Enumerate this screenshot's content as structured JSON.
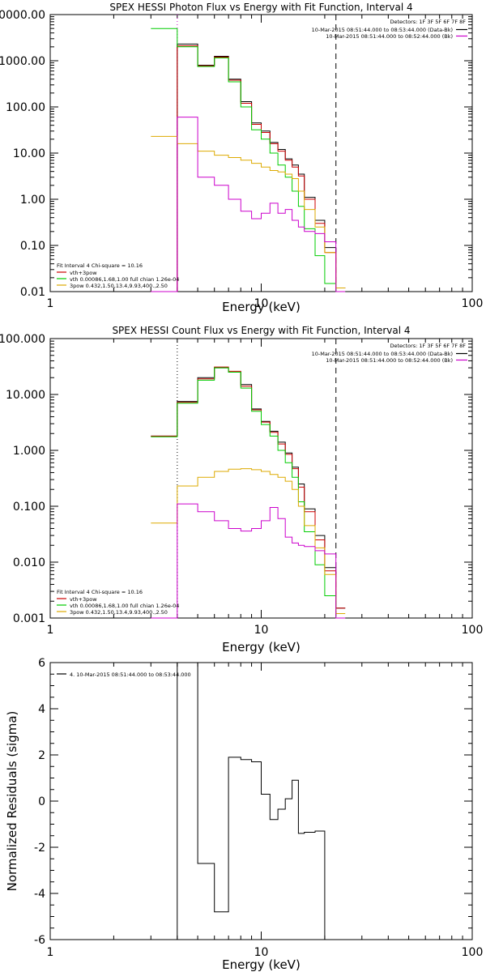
{
  "chart_data": [
    {
      "type": "line",
      "title": "SPEX HESSI Photon Flux vs Energy with Fit Function, Interval 4",
      "xlabel": "Energy (keV)",
      "ylabel": "",
      "xscale": "log",
      "yscale": "log",
      "xlim": [
        1,
        100
      ],
      "ylim": [
        0.01,
        10000
      ],
      "xticks": [
        {
          "v": 1,
          "label": "1"
        },
        {
          "v": 10,
          "label": "10"
        },
        {
          "v": 100,
          "label": "100"
        }
      ],
      "yticks": [
        {
          "v": 0.01,
          "label": "0.01"
        },
        {
          "v": 0.1,
          "label": "0.10"
        },
        {
          "v": 1,
          "label": "1.00"
        },
        {
          "v": 10,
          "label": "10.00"
        },
        {
          "v": 100,
          "label": "100.00"
        },
        {
          "v": 1000,
          "label": "1000.00"
        },
        {
          "v": 10000,
          "label": "10000.00"
        }
      ],
      "vlines": [
        {
          "x": 4.0,
          "style": "dotted",
          "color": "#cc00cc"
        },
        {
          "x": 22.6,
          "style": "dashed",
          "color": "#000000"
        }
      ],
      "legend_top": {
        "header": "Detectors: 1F 3F 5F 6F 7F 8F",
        "entries": [
          {
            "text": "10-Mar-2015 08:51:44.000 to 08:53:44.000 (Data-Bk)",
            "color": "#000000"
          },
          {
            "text": "10-Mar-2015 08:51:44.000 to 08:52:44.000 (Bk)",
            "color": "#cc00cc"
          }
        ]
      },
      "legend_bottom": {
        "header": "Fit Interval 4   Chi-square = 10.16",
        "entries": [
          {
            "text": "vth+3pow",
            "color": "#cc0000"
          },
          {
            "text": "vth 0.00086,1.68,1.00  full chian 1.26e-04",
            "color": "#00cc00"
          },
          {
            "text": "3pow 0.432,1.50,13.4,9.93,400.,2.50",
            "color": "#ddaa00"
          }
        ]
      },
      "edges": [
        3.0,
        4.0,
        5.0,
        6.0,
        7.0,
        8.0,
        9.0,
        10.0,
        11.0,
        12.0,
        13.0,
        14.0,
        15.0,
        16.0,
        18.0,
        20.0,
        22.6,
        25.0
      ],
      "series": [
        {
          "name": "Data-Bk",
          "color": "#000000",
          "values": [
            0.002,
            2300,
            800,
            1250,
            400,
            130,
            45,
            30,
            17,
            12,
            7.5,
            5.5,
            3.5,
            1.1,
            0.35,
            0.09,
            0.012
          ]
        },
        {
          "name": "vth+3pow",
          "color": "#cc0000",
          "values": [
            0.002,
            2100,
            780,
            1200,
            380,
            120,
            42,
            28,
            16,
            11,
            7,
            5,
            3.2,
            1.0,
            0.3,
            0.07,
            0.012
          ]
        },
        {
          "name": "vth",
          "color": "#00cc00",
          "values": [
            5000,
            2000,
            750,
            1150,
            350,
            100,
            32,
            20,
            10,
            5.5,
            3,
            1.5,
            0.7,
            0.23,
            0.06,
            0.015,
            0.002
          ]
        },
        {
          "name": "3pow",
          "color": "#ddaa00",
          "values": [
            23,
            16,
            11,
            9,
            8,
            7,
            6,
            5,
            4.2,
            3.9,
            3.5,
            2.8,
            1.5,
            0.6,
            0.25,
            0.07,
            0.012
          ]
        },
        {
          "name": "Bk",
          "color": "#cc00cc",
          "values": [
            0.002,
            60,
            3,
            2,
            1,
            0.55,
            0.38,
            0.5,
            0.82,
            0.5,
            0.6,
            0.35,
            0.25,
            0.2,
            0.18,
            0.12,
            0.01
          ]
        }
      ]
    },
    {
      "type": "line",
      "title": "SPEX HESSI Count Flux vs Energy with Fit Function, Interval 4",
      "xlabel": "Energy (keV)",
      "ylabel": "",
      "xscale": "log",
      "yscale": "log",
      "xlim": [
        1,
        100
      ],
      "ylim": [
        0.001,
        100
      ],
      "xticks": [
        {
          "v": 1,
          "label": "1"
        },
        {
          "v": 10,
          "label": "10"
        },
        {
          "v": 100,
          "label": "100"
        }
      ],
      "yticks": [
        {
          "v": 0.001,
          "label": "0.001"
        },
        {
          "v": 0.01,
          "label": "0.010"
        },
        {
          "v": 0.1,
          "label": "0.100"
        },
        {
          "v": 1,
          "label": "1.000"
        },
        {
          "v": 10,
          "label": "10.000"
        },
        {
          "v": 100,
          "label": "100.000"
        }
      ],
      "vlines": [
        {
          "x": 4.0,
          "style": "dotted",
          "color": "#000000"
        },
        {
          "x": 22.6,
          "style": "dashed",
          "color": "#000000"
        }
      ],
      "legend_top": {
        "header": "Detectors: 1F 3F 5F 6F 7F 8F",
        "entries": [
          {
            "text": "10-Mar-2015 08:51:44.000 to 08:53:44.000 (Data-Bk)",
            "color": "#000000"
          },
          {
            "text": "10-Mar-2015 08:51:44.000 to 08:52:44.000 (Bk)",
            "color": "#cc00cc"
          }
        ]
      },
      "legend_bottom": {
        "header": "Fit Interval 4   Chi-square = 10.16",
        "entries": [
          {
            "text": "vth+3pow",
            "color": "#cc0000"
          },
          {
            "text": "vth 0.00086,1.68,1.00  full chian 1.26e-04",
            "color": "#00cc00"
          },
          {
            "text": "3pow 0.432,1.50,13.4,9.93,400.,2.50",
            "color": "#ddaa00"
          }
        ]
      },
      "edges": [
        3.0,
        4.0,
        5.0,
        6.0,
        7.0,
        8.0,
        9.0,
        10.0,
        11.0,
        12.0,
        13.0,
        14.0,
        15.0,
        16.0,
        18.0,
        20.0,
        22.6,
        25.0
      ],
      "series": [
        {
          "name": "Data-Bk",
          "color": "#000000",
          "values": [
            1.8,
            7.5,
            20,
            30,
            25,
            15,
            5.5,
            3.3,
            2.2,
            1.4,
            0.9,
            0.5,
            0.25,
            0.09,
            0.03,
            0.008,
            0.0015
          ]
        },
        {
          "name": "vth+3pow",
          "color": "#cc0000",
          "values": [
            1.8,
            7.2,
            19,
            31,
            26,
            14,
            5.3,
            3.2,
            2.1,
            1.3,
            0.85,
            0.47,
            0.22,
            0.08,
            0.025,
            0.007,
            0.0015
          ]
        },
        {
          "name": "vth",
          "color": "#00cc00",
          "values": [
            1.75,
            7,
            18,
            30,
            25,
            13,
            5,
            2.9,
            1.8,
            1.0,
            0.6,
            0.33,
            0.12,
            0.035,
            0.009,
            0.0025,
            0.001
          ]
        },
        {
          "name": "3pow",
          "color": "#ddaa00",
          "values": [
            0.05,
            0.23,
            0.33,
            0.42,
            0.46,
            0.47,
            0.45,
            0.42,
            0.37,
            0.33,
            0.28,
            0.2,
            0.1,
            0.045,
            0.018,
            0.006,
            0.0012
          ]
        },
        {
          "name": "Bk",
          "color": "#cc00cc",
          "values": [
            0.001,
            0.11,
            0.08,
            0.055,
            0.04,
            0.036,
            0.04,
            0.055,
            0.095,
            0.06,
            0.028,
            0.022,
            0.02,
            0.019,
            0.016,
            0.014,
            0.001
          ]
        }
      ]
    },
    {
      "type": "line",
      "title": "",
      "xlabel": "Energy (keV)",
      "ylabel": "Normalized Residuals (sigma)",
      "xscale": "log",
      "yscale": "linear",
      "xlim": [
        1,
        100
      ],
      "ylim": [
        -6,
        6
      ],
      "xticks": [
        {
          "v": 1,
          "label": "1"
        },
        {
          "v": 10,
          "label": "10"
        },
        {
          "v": 100,
          "label": "100"
        }
      ],
      "yticks": [
        {
          "v": -6,
          "label": "-6"
        },
        {
          "v": -4,
          "label": "-4"
        },
        {
          "v": -2,
          "label": "-2"
        },
        {
          "v": 0,
          "label": "0"
        },
        {
          "v": 2,
          "label": "2"
        },
        {
          "v": 4,
          "label": "4"
        },
        {
          "v": 6,
          "label": "6"
        }
      ],
      "legend_top_left": {
        "text": "4. 10-Mar-2015 08:51:44.000 to 08:53:44.000",
        "color": "#000000"
      },
      "edges": [
        4.0,
        5.0,
        6.0,
        7.0,
        8.0,
        9.0,
        10.0,
        11.0,
        12.0,
        13.0,
        14.0,
        15.0,
        16.0,
        18.0,
        20.0,
        22.6
      ],
      "series": [
        {
          "name": "residuals",
          "color": "#000000",
          "values": [
            6.0,
            -2.7,
            -4.8,
            1.9,
            1.8,
            1.7,
            0.3,
            -0.8,
            -0.35,
            0.1,
            0.9,
            -1.4,
            -1.35,
            -1.3,
            -6.0
          ]
        }
      ]
    }
  ]
}
